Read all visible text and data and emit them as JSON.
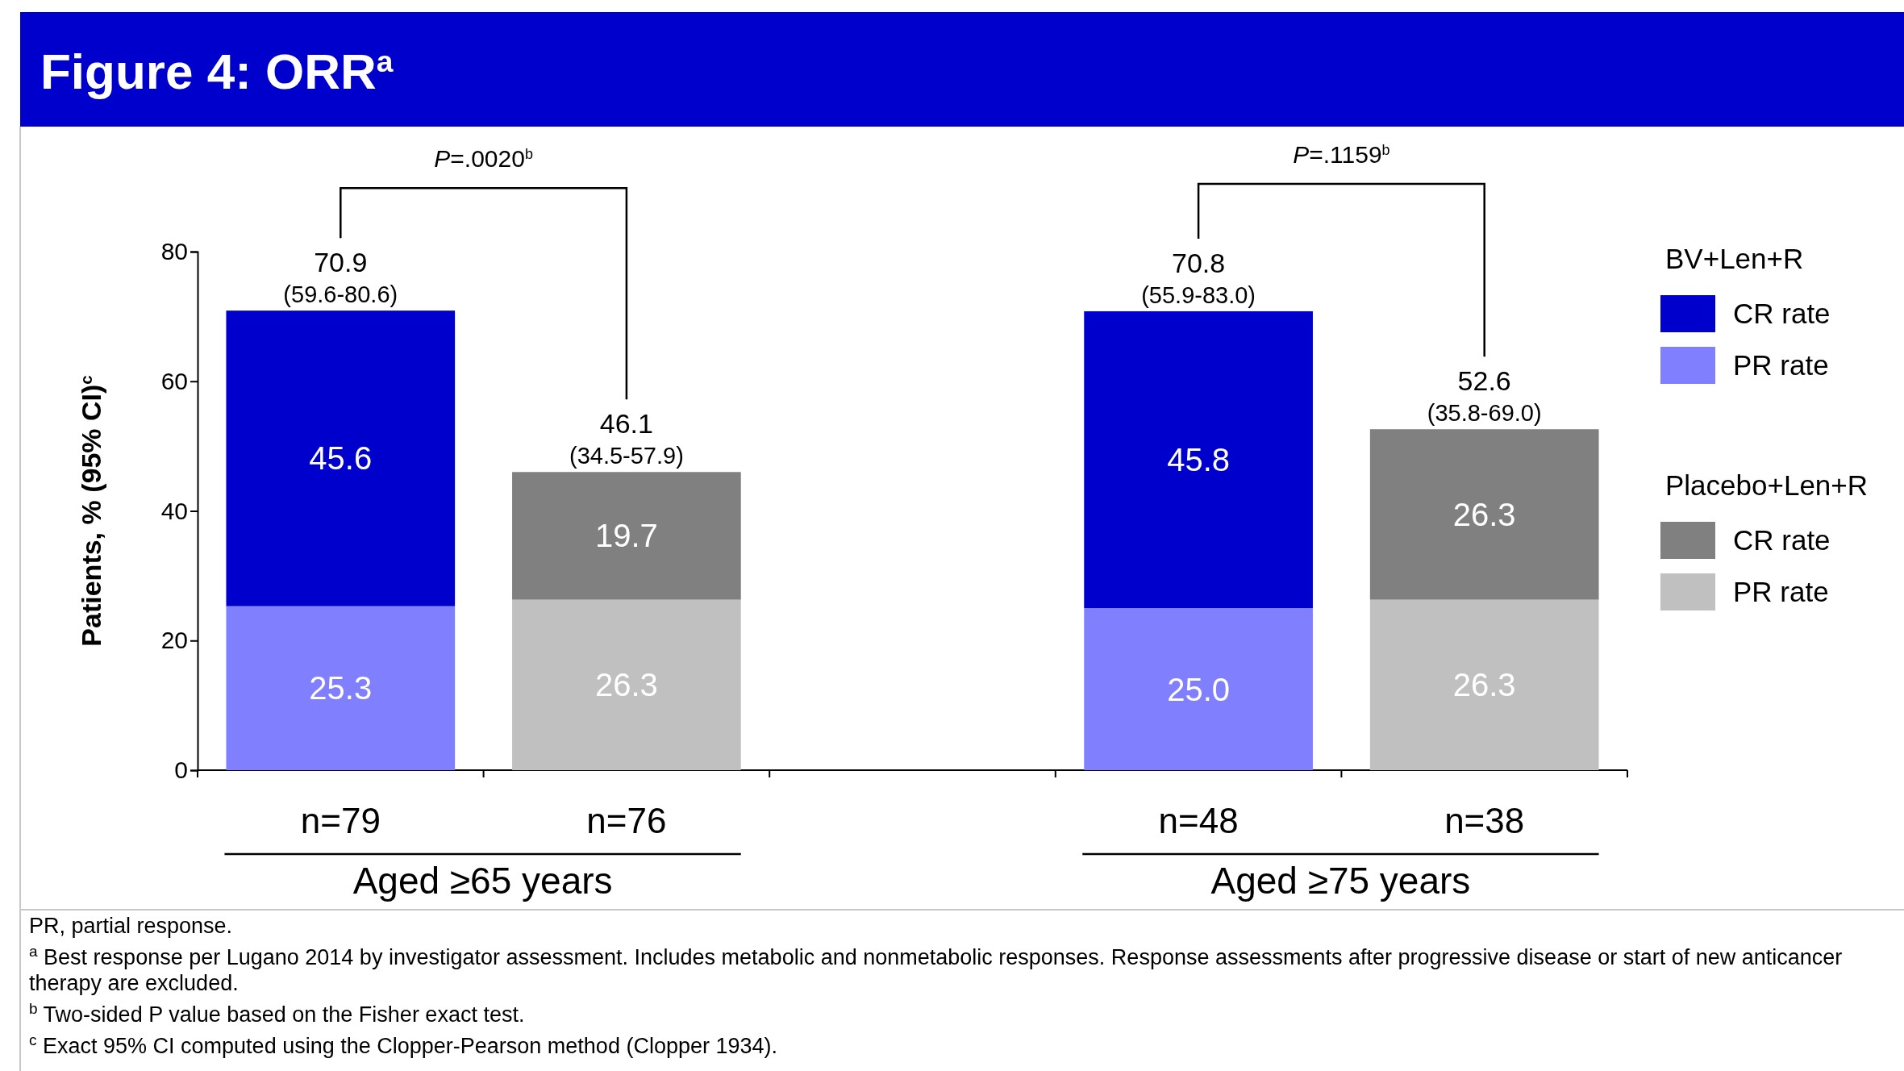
{
  "chart_data": {
    "type": "bar",
    "title": "Figure 4: ORR$^{a}$",
    "ylabel": "Patients, % (95% CI)$^{c}$",
    "categories": [
      "n=79",
      "n=76",
      null,
      "n=48",
      "n=38"
    ],
    "stacked": true,
    "ylim": [
      0,
      80
    ],
    "yticks": [
      0,
      20,
      40,
      60,
      80
    ],
    "grid": false,
    "legend": "right",
    "totals": [
      "70.9\n(59.6-80.6)",
      "46.1\n(34.5-57.9)",
      null,
      "70.8\n(55.9-83.0)",
      "52.6\n(35.8-69.0)"
    ],
    "series": [
      {
        "name": "PR rate",
        "color": "#8080ff",
        "values": [
          25.3,
          null,
          null,
          25.0,
          null
        ],
        "value_labels": [
          "25.3",
          null,
          null,
          "25.0",
          null
        ]
      },
      {
        "name": "CR rate",
        "color": "#0000cc",
        "values": [
          45.6,
          null,
          null,
          45.8,
          null
        ],
        "value_labels": [
          "45.6",
          null,
          null,
          "45.8",
          null
        ]
      },
      {
        "name": "PR rate",
        "color": "#c0c0c0",
        "values": [
          null,
          26.3,
          null,
          null,
          26.3
        ],
        "value_labels": [
          null,
          "26.3",
          null,
          null,
          "26.3"
        ]
      },
      {
        "name": "CR rate",
        "color": "#808080",
        "values": [
          null,
          19.7,
          null,
          null,
          26.3
        ],
        "value_labels": [
          null,
          "19.7",
          null,
          null,
          "26.3"
        ]
      }
    ],
    "annotations": [
      "P=.0020$^{b}$",
      "P=.1159$^{b}$",
      "Aged ≥65 years",
      "Aged ≥75 years",
      "BV+Len+R",
      "Placebo+Len+R",
      "PR, partial response.",
      "$^{a}$ Best response per Lugano 2014 by investigator assessment. Includes metabolic and nonmetabolic responses. Response assessments after progressive disease or start of new anticancer therapy are excluded.",
      "$^{b}$ Two-sided P value based on the Fisher exact test.",
      "$^{c}$ Exact 95% CI computed using the Clopper-Pearson method (Clopper 1934)."
    ]
  }
}
